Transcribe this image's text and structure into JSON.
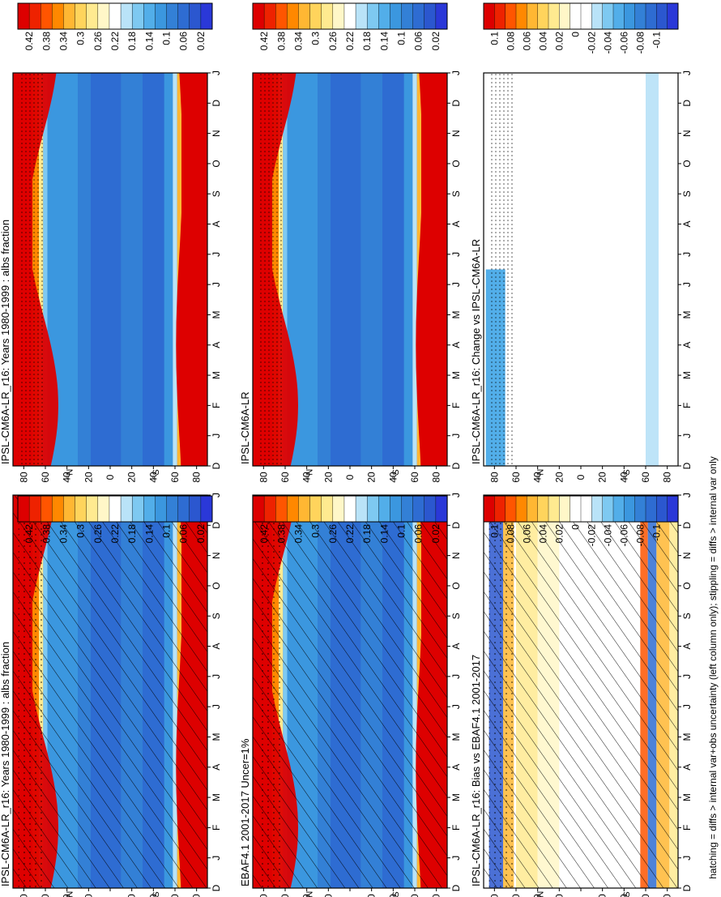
{
  "figure": {
    "footer": "hatching = diffs > internal var+obs uncertainty (left column only); stippling = diffs > internal var only"
  },
  "colors": {
    "seq": [
      "#dd0000",
      "#ee2200",
      "#ff5500",
      "#ff8800",
      "#ffb733",
      "#ffd45c",
      "#ffea90",
      "#fff7c8",
      "#ffffff",
      "#b9e3f8",
      "#7ec9f1",
      "#52aee9",
      "#3b97df",
      "#3380d6",
      "#2e6cd2",
      "#2b57cf",
      "#2a38d8"
    ],
    "div": [
      "#dd0000",
      "#ee2200",
      "#ff5500",
      "#ff8800",
      "#ffb733",
      "#ffd45c",
      "#ffea90",
      "#fff7c8",
      "#ffffff",
      "#ffffff",
      "#b9e3f8",
      "#7ec9f1",
      "#52aee9",
      "#3b97df",
      "#3380d6",
      "#2e6cd2",
      "#2b57cf",
      "#2a38d8"
    ]
  },
  "month_labels": [
    "D",
    "J",
    "F",
    "M",
    "A",
    "M",
    "J",
    "J",
    "A",
    "S",
    "O",
    "N",
    "D",
    "J"
  ],
  "lat_labels": [
    "80",
    "60",
    "40",
    "20",
    "0",
    "20",
    "40",
    "60",
    "80"
  ],
  "hemisphere_labels": {
    "north": "°N",
    "south": "°S"
  },
  "legend_labels": {
    "seq": [
      "0.42",
      "0.38",
      "0.34",
      "0.3",
      "0.26",
      "0.22",
      "0.18",
      "0.14",
      "0.1",
      "0.06",
      "0.02"
    ],
    "div": [
      "0.1",
      "0.08",
      "0.06",
      "0.04",
      "0.02",
      "0",
      "-0.02",
      "-0.04",
      "-0.06",
      "-0.08",
      "-0.1"
    ]
  },
  "chart_data": [
    {
      "type": "heatmap",
      "panel": "left-top",
      "title": "IPSL-CM6A-LR_r16: Years 1980-1999 : albs fraction",
      "colorscale": "seq",
      "hatching": true,
      "stippling": true
    },
    {
      "type": "heatmap",
      "panel": "left-middle",
      "title": "EBAF4.1 2001-2017 Uncer=1%",
      "colorscale": "seq",
      "hatching": true,
      "stippling": true
    },
    {
      "type": "heatmap",
      "panel": "left-bottom",
      "title": "IPSL-CM6A-LR_r16: Bias vs EBAF4.1 2001-2017",
      "colorscale": "div",
      "hatching": true,
      "stippling": true
    },
    {
      "type": "heatmap",
      "panel": "right-top",
      "title": "IPSL-CM6A-LR_r16: Years 1980-1999 : albs fraction",
      "colorscale": "seq",
      "hatching": false,
      "stippling": true
    },
    {
      "type": "heatmap",
      "panel": "right-middle",
      "title": "IPSL-CM6A-LR",
      "colorscale": "seq",
      "hatching": false,
      "stippling": true
    },
    {
      "type": "heatmap",
      "panel": "right-bottom",
      "title": "IPSL-CM6A-LR_r16: Change vs IPSL-CM6A-LR",
      "colorscale": "div",
      "hatching": false,
      "stippling": true
    }
  ]
}
